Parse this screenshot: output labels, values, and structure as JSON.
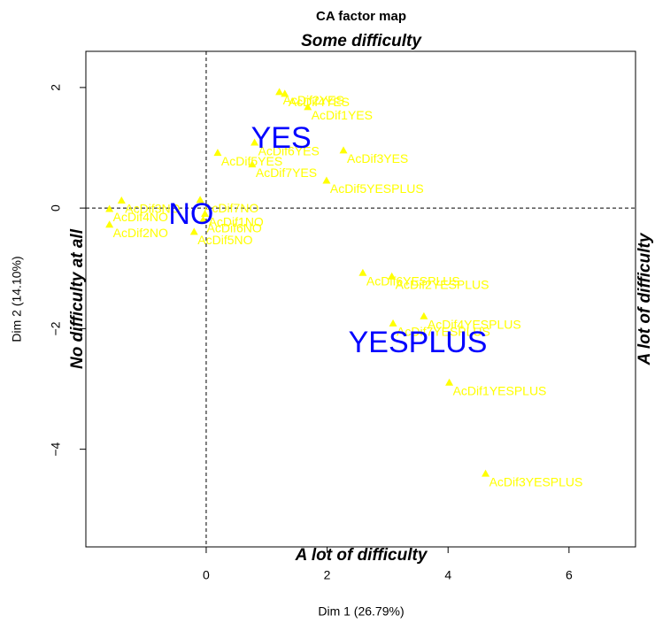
{
  "chart_data": {
    "type": "scatter",
    "title": "CA factor map",
    "xlabel": "Dim 1 (26.79%)",
    "ylabel": "Dim 2 (14.10%)",
    "annotations": {
      "top": "Some difficulty",
      "bottom": "A lot of difficulty",
      "left": "No difficulty at all",
      "right": "A lot of difficulty"
    },
    "xlim": [
      -1.99,
      7.1
    ],
    "ylim": [
      -5.62,
      2.6
    ],
    "xticks": [
      0,
      2,
      4,
      6
    ],
    "yticks": [
      {
        "value": -4,
        "label": "−4"
      },
      {
        "value": -2,
        "label": "−2"
      },
      0,
      2
    ],
    "row_color": "#ffff00",
    "col_color": "#0000ff",
    "rows": [
      {
        "label": "AcDif2YES",
        "x": 1.21,
        "y": 1.92
      },
      {
        "label": "AcDif4YES",
        "x": 1.3,
        "y": 1.89
      },
      {
        "label": "AcDif1YES",
        "x": 1.68,
        "y": 1.67
      },
      {
        "label": "AcDif5YES",
        "x": 0.19,
        "y": 0.91
      },
      {
        "label": "AcDif6YES",
        "x": 0.8,
        "y": 1.08
      },
      {
        "label": "AcDif3YES",
        "x": 2.27,
        "y": 0.95
      },
      {
        "label": "AcDif7YES",
        "x": 0.76,
        "y": 0.72
      },
      {
        "label": "AcDif5YESPLUS",
        "x": 1.99,
        "y": 0.45
      },
      {
        "label": "AcDif3NO",
        "x": -1.4,
        "y": 0.12
      },
      {
        "label": "AcDif4NO",
        "x": -1.6,
        "y": -0.02
      },
      {
        "label": "AcDif2NO",
        "x": -1.6,
        "y": -0.28
      },
      {
        "label": "AcDif7NO",
        "x": -0.1,
        "y": 0.13
      },
      {
        "label": "AcDif1NO",
        "x": -0.02,
        "y": -0.1
      },
      {
        "label": "AcDif6NO",
        "x": -0.05,
        "y": -0.2
      },
      {
        "label": "AcDif5NO",
        "x": -0.2,
        "y": -0.4
      },
      {
        "label": "AcDif6YESPLUS",
        "x": 2.59,
        "y": -1.08
      },
      {
        "label": "AcDif2YESPLUS",
        "x": 3.07,
        "y": -1.14
      },
      {
        "label": "AcDif4YESPLUS",
        "x": 3.6,
        "y": -1.8
      },
      {
        "label": "AcDif7YESPLUS",
        "x": 3.09,
        "y": -1.92
      },
      {
        "label": "AcDif1YESPLUS",
        "x": 4.02,
        "y": -2.9
      },
      {
        "label": "AcDif3YESPLUS",
        "x": 4.62,
        "y": -4.41
      }
    ],
    "cols": [
      {
        "label": "YES",
        "x": 1.24,
        "y": 1.16
      },
      {
        "label": "NO",
        "x": -0.25,
        "y": -0.1
      },
      {
        "label": "YESPLUS",
        "x": 3.5,
        "y": -2.23
      }
    ]
  }
}
